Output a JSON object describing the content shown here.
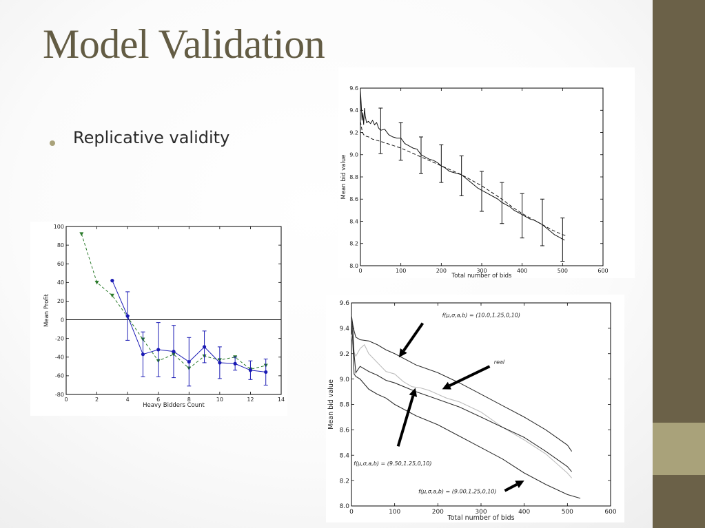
{
  "slide": {
    "title": "Model Validation",
    "bullets": [
      "Replicative validity"
    ]
  },
  "theme": {
    "title_color": "#635c44",
    "band_color": "#6b6148",
    "band_accent": "#a9a27a"
  },
  "chart_data": [
    {
      "id": "profit",
      "type": "line",
      "xlabel": "Heavy Bidders Count",
      "ylabel": "Mean Profit",
      "xlim": [
        0,
        14
      ],
      "ylim": [
        -80,
        100
      ],
      "xticks": [
        0,
        2,
        4,
        6,
        8,
        10,
        12,
        14
      ],
      "yticks": [
        -80,
        -60,
        -40,
        -20,
        0,
        20,
        40,
        60,
        80,
        100
      ],
      "grid": false,
      "zero_line": true,
      "series": [
        {
          "color": "#2a7a2a",
          "dash": "4,3",
          "marker": "triangle-down",
          "x": [
            1,
            2,
            3,
            4,
            5,
            6,
            7,
            8,
            9,
            10,
            11,
            12,
            13
          ],
          "y": [
            92,
            40,
            26,
            3,
            -21,
            -44,
            -37,
            -52,
            -39,
            -43,
            -40,
            -53,
            -49
          ]
        },
        {
          "color": "#1a1ab4",
          "dash": "",
          "marker": "circle",
          "x": [
            3,
            4,
            5,
            6,
            7,
            8,
            9,
            10,
            11,
            12,
            13
          ],
          "y": [
            42,
            4,
            -37,
            -32,
            -34,
            -45,
            -29,
            -46,
            -47,
            -54,
            -56
          ],
          "err": [
            0,
            26,
            24,
            29,
            28,
            26,
            17,
            17,
            7,
            10,
            14
          ]
        }
      ]
    },
    {
      "id": "mean-bid-top",
      "type": "line",
      "xlabel": "Total number of bids",
      "ylabel": "Mean bid value",
      "xlim": [
        0,
        600
      ],
      "ylim": [
        8.0,
        9.6
      ],
      "xticks": [
        0,
        100,
        200,
        300,
        400,
        500,
        600
      ],
      "yticks": [
        "8.0",
        "8.2",
        "8.4",
        "8.6",
        "8.8",
        "9.0",
        "9.2",
        "9.4",
        "9.6"
      ],
      "grid": false,
      "series": [
        {
          "style": "solid",
          "points": [
            [
              0,
              9.58
            ],
            [
              2,
              9.45
            ],
            [
              4,
              9.31
            ],
            [
              6,
              9.38
            ],
            [
              8,
              9.27
            ],
            [
              10,
              9.42
            ],
            [
              12,
              9.35
            ],
            [
              15,
              9.29
            ],
            [
              20,
              9.3
            ],
            [
              25,
              9.28
            ],
            [
              30,
              9.31
            ],
            [
              35,
              9.27
            ],
            [
              40,
              9.29
            ],
            [
              45,
              9.24
            ],
            [
              50,
              9.22
            ],
            [
              60,
              9.23
            ],
            [
              70,
              9.18
            ],
            [
              80,
              9.16
            ],
            [
              90,
              9.15
            ],
            [
              100,
              9.15
            ],
            [
              110,
              9.1
            ],
            [
              120,
              9.08
            ],
            [
              130,
              9.06
            ],
            [
              140,
              9.05
            ],
            [
              150,
              9.0
            ],
            [
              160,
              8.98
            ],
            [
              170,
              8.96
            ],
            [
              180,
              8.95
            ],
            [
              190,
              8.93
            ],
            [
              200,
              8.9
            ],
            [
              210,
              8.88
            ],
            [
              220,
              8.85
            ],
            [
              230,
              8.84
            ],
            [
              240,
              8.83
            ],
            [
              250,
              8.82
            ],
            [
              260,
              8.79
            ],
            [
              270,
              8.76
            ],
            [
              280,
              8.73
            ],
            [
              290,
              8.7
            ],
            [
              300,
              8.68
            ],
            [
              310,
              8.66
            ],
            [
              320,
              8.64
            ],
            [
              330,
              8.62
            ],
            [
              340,
              8.6
            ],
            [
              350,
              8.57
            ],
            [
              360,
              8.55
            ],
            [
              370,
              8.53
            ],
            [
              380,
              8.5
            ],
            [
              390,
              8.48
            ],
            [
              400,
              8.46
            ],
            [
              410,
              8.44
            ],
            [
              420,
              8.42
            ],
            [
              430,
              8.41
            ],
            [
              440,
              8.39
            ],
            [
              450,
              8.37
            ],
            [
              460,
              8.34
            ],
            [
              470,
              8.31
            ],
            [
              480,
              8.28
            ],
            [
              490,
              8.26
            ],
            [
              500,
              8.24
            ],
            [
              505,
              8.23
            ]
          ]
        },
        {
          "style": "dashed",
          "points": [
            [
              0,
              9.3
            ],
            [
              5,
              9.2
            ],
            [
              10,
              9.17
            ],
            [
              20,
              9.16
            ],
            [
              30,
              9.14
            ],
            [
              50,
              9.12
            ],
            [
              75,
              9.09
            ],
            [
              100,
              9.06
            ],
            [
              125,
              9.02
            ],
            [
              150,
              8.98
            ],
            [
              175,
              8.94
            ],
            [
              200,
              8.9
            ],
            [
              225,
              8.86
            ],
            [
              250,
              8.82
            ],
            [
              275,
              8.77
            ],
            [
              300,
              8.72
            ],
            [
              325,
              8.66
            ],
            [
              350,
              8.6
            ],
            [
              375,
              8.53
            ],
            [
              400,
              8.47
            ],
            [
              425,
              8.42
            ],
            [
              450,
              8.37
            ],
            [
              475,
              8.32
            ],
            [
              500,
              8.28
            ],
            [
              510,
              8.27
            ]
          ]
        }
      ],
      "errorbars": [
        {
          "x": 50,
          "y": 9.22,
          "lo": 9.01,
          "hi": 9.42
        },
        {
          "x": 100,
          "y": 9.12,
          "lo": 8.95,
          "hi": 9.29
        },
        {
          "x": 150,
          "y": 9.0,
          "lo": 8.83,
          "hi": 9.16
        },
        {
          "x": 200,
          "y": 8.92,
          "lo": 8.75,
          "hi": 9.09
        },
        {
          "x": 250,
          "y": 8.81,
          "lo": 8.63,
          "hi": 8.99
        },
        {
          "x": 300,
          "y": 8.67,
          "lo": 8.49,
          "hi": 8.85
        },
        {
          "x": 350,
          "y": 8.56,
          "lo": 8.38,
          "hi": 8.75
        },
        {
          "x": 400,
          "y": 8.45,
          "lo": 8.25,
          "hi": 8.65
        },
        {
          "x": 450,
          "y": 8.39,
          "lo": 8.18,
          "hi": 8.6
        },
        {
          "x": 500,
          "y": 8.24,
          "lo": 8.04,
          "hi": 8.43
        }
      ]
    },
    {
      "id": "mean-bid-bottom",
      "type": "line",
      "xlabel": "Total number of bids",
      "ylabel": "Mean bid value",
      "xlim": [
        0,
        600
      ],
      "ylim": [
        8.0,
        9.6
      ],
      "xticks": [
        0,
        100,
        200,
        300,
        400,
        500,
        600
      ],
      "yticks": [
        "8.0",
        "8.2",
        "8.4",
        "8.6",
        "8.8",
        "9.0",
        "9.2",
        "9.4",
        "9.6"
      ],
      "grid": false,
      "series": [
        {
          "color": "#2d2d2d",
          "points": [
            [
              0,
              9.5
            ],
            [
              3,
              9.43
            ],
            [
              6,
              9.38
            ],
            [
              10,
              9.33
            ],
            [
              20,
              9.31
            ],
            [
              40,
              9.3
            ],
            [
              60,
              9.27
            ],
            [
              80,
              9.23
            ],
            [
              100,
              9.2
            ],
            [
              150,
              9.11
            ],
            [
              200,
              9.05
            ],
            [
              250,
              8.97
            ],
            [
              300,
              8.88
            ],
            [
              350,
              8.79
            ],
            [
              400,
              8.7
            ],
            [
              450,
              8.6
            ],
            [
              500,
              8.48
            ],
            [
              510,
              8.43
            ]
          ]
        },
        {
          "color": "#bdbdbd",
          "points": [
            [
              0,
              9.35
            ],
            [
              5,
              9.22
            ],
            [
              10,
              9.18
            ],
            [
              20,
              9.24
            ],
            [
              30,
              9.27
            ],
            [
              40,
              9.2
            ],
            [
              60,
              9.13
            ],
            [
              80,
              9.06
            ],
            [
              100,
              9.04
            ],
            [
              120,
              8.98
            ],
            [
              140,
              8.94
            ],
            [
              160,
              8.93
            ],
            [
              180,
              8.91
            ],
            [
              200,
              8.88
            ],
            [
              220,
              8.85
            ],
            [
              250,
              8.82
            ],
            [
              300,
              8.74
            ],
            [
              350,
              8.62
            ],
            [
              400,
              8.52
            ],
            [
              450,
              8.41
            ],
            [
              500,
              8.26
            ],
            [
              510,
              8.22
            ]
          ]
        },
        {
          "color": "#2d2d2d",
          "points": [
            [
              0,
              9.47
            ],
            [
              3,
              9.4
            ],
            [
              6,
              9.2
            ],
            [
              10,
              9.05
            ],
            [
              20,
              9.1
            ],
            [
              40,
              9.06
            ],
            [
              60,
              9.03
            ],
            [
              80,
              8.99
            ],
            [
              100,
              8.97
            ],
            [
              150,
              8.9
            ],
            [
              200,
              8.84
            ],
            [
              250,
              8.78
            ],
            [
              300,
              8.7
            ],
            [
              350,
              8.62
            ],
            [
              400,
              8.54
            ],
            [
              450,
              8.43
            ],
            [
              500,
              8.31
            ],
            [
              510,
              8.27
            ]
          ]
        },
        {
          "color": "#2d2d2d",
          "points": [
            [
              0,
              9.45
            ],
            [
              3,
              9.3
            ],
            [
              6,
              9.04
            ],
            [
              10,
              9.02
            ],
            [
              20,
              9.0
            ],
            [
              40,
              8.92
            ],
            [
              60,
              8.88
            ],
            [
              80,
              8.85
            ],
            [
              100,
              8.8
            ],
            [
              150,
              8.71
            ],
            [
              200,
              8.64
            ],
            [
              250,
              8.55
            ],
            [
              300,
              8.46
            ],
            [
              350,
              8.37
            ],
            [
              400,
              8.26
            ],
            [
              450,
              8.17
            ],
            [
              500,
              8.09
            ],
            [
              530,
              8.06
            ]
          ]
        }
      ],
      "annotations": [
        {
          "text": "f(μ,σ,a,b) = (10.0,1.25,0,10)",
          "tx": 210,
          "ty": 9.49,
          "from": [
            165,
            9.44
          ],
          "to": [
            110,
            9.17
          ]
        },
        {
          "text": "real",
          "tx": 330,
          "ty": 9.12,
          "from": [
            320,
            9.1
          ],
          "to": [
            210,
            8.92
          ]
        },
        {
          "text": "f(μ,σ,a,b) = (9.50,1.25,0,10)",
          "tx": 5,
          "ty": 8.32,
          "from": [
            108,
            8.47
          ],
          "to": [
            148,
            8.93
          ]
        },
        {
          "text": "f(μ,σ,a,b) = (9.00,1.25,0,10)",
          "tx": 155,
          "ty": 8.1,
          "from": [
            355,
            8.12
          ],
          "to": [
            400,
            8.2
          ]
        }
      ]
    }
  ]
}
